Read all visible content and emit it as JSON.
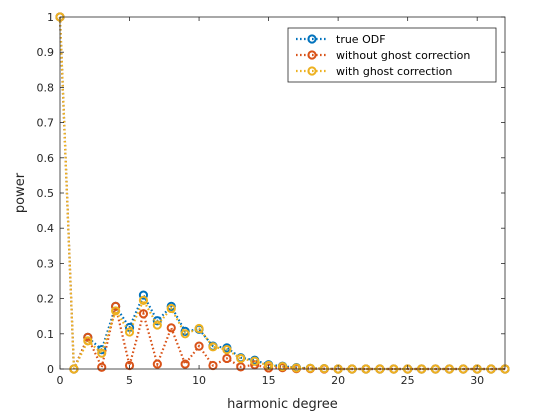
{
  "chart_data": {
    "type": "line",
    "title": "",
    "xlabel": "harmonic degree",
    "ylabel": "power",
    "xlim": [
      0,
      32
    ],
    "ylim": [
      0,
      1
    ],
    "xticks": [
      0,
      5,
      10,
      15,
      20,
      25,
      30
    ],
    "yticks": [
      0,
      0.1,
      0.2,
      0.3,
      0.4,
      0.5,
      0.6,
      0.7,
      0.8,
      0.9,
      1
    ],
    "grid": false,
    "legend_position": "top-right",
    "x": [
      0,
      1,
      2,
      3,
      4,
      5,
      6,
      7,
      8,
      9,
      10,
      11,
      12,
      13,
      14,
      15,
      16,
      17,
      18,
      19,
      20,
      21,
      22,
      23,
      24,
      25,
      26,
      27,
      28,
      29,
      30,
      31,
      32
    ],
    "series": [
      {
        "name": "true ODF",
        "color": "#0072BD",
        "values": [
          1.0,
          0,
          0.09,
          0.055,
          0.178,
          0.118,
          0.21,
          0.137,
          0.178,
          0.107,
          0.113,
          0.065,
          0.06,
          0.032,
          0.025,
          0.012,
          0.008,
          0.004,
          0.002,
          0.001,
          0,
          0,
          0,
          0,
          0,
          0,
          0,
          0,
          0,
          0,
          0,
          0,
          0
        ]
      },
      {
        "name": "without ghost correction",
        "color": "#D95319",
        "values": [
          1.0,
          0,
          0.09,
          0.005,
          0.178,
          0.01,
          0.157,
          0.014,
          0.117,
          0.014,
          0.065,
          0.01,
          0.03,
          0.006,
          0.012,
          0.003,
          0.004,
          0.001,
          0.001,
          0,
          0,
          0,
          0,
          0,
          0,
          0,
          0,
          0,
          0,
          0,
          0,
          0,
          0
        ]
      },
      {
        "name": "with ghost correction",
        "color": "#EDB120",
        "values": [
          1.0,
          0,
          0.08,
          0.045,
          0.165,
          0.105,
          0.195,
          0.125,
          0.172,
          0.1,
          0.115,
          0.063,
          0.055,
          0.03,
          0.022,
          0.01,
          0.007,
          0.003,
          0.002,
          0.001,
          0,
          0,
          0,
          0,
          0,
          0,
          0,
          0,
          0,
          0,
          0,
          0,
          0
        ]
      }
    ]
  }
}
